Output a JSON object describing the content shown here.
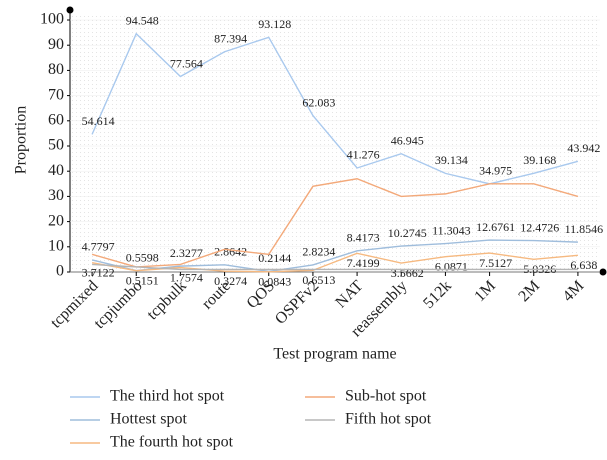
{
  "chart_data": {
    "type": "line",
    "x_label": "Test program name",
    "y_label": "Proportion",
    "categories": [
      "tcpmixed",
      "tcpjumbo",
      "tcpbulk",
      "route",
      "QOS",
      "OSPFv2",
      "NAT",
      "reassembly",
      "512k",
      "1M",
      "2M",
      "4M"
    ],
    "series": [
      {
        "name": "The third hot spot",
        "color": "#a9c9ee",
        "show_labels": true,
        "values": [
          54.614,
          94.548,
          77.564,
          87.394,
          93.128,
          62.083,
          41.276,
          46.945,
          39.134,
          34.975,
          39.168,
          43.942
        ]
      },
      {
        "name": "Hottest spot",
        "color": "#9fbddc",
        "show_labels": true,
        "values": [
          4.7797,
          0.5598,
          2.3277,
          2.8642,
          0.2144,
          2.8234,
          8.4173,
          10.2745,
          11.3043,
          12.6761,
          12.4726,
          11.8546
        ]
      },
      {
        "name": "The fourth hot spot",
        "color": "#f6b980",
        "show_labels": true,
        "values": [
          3.7122,
          0.5151,
          1.7574,
          0.3274,
          0.0843,
          0.6513,
          7.4199,
          3.5662,
          6.0871,
          7.5127,
          5.0326,
          6.638
        ]
      },
      {
        "name": "Sub-hot spot",
        "color": "#f3a97a",
        "show_labels": false,
        "values": [
          7,
          2,
          3,
          9,
          7,
          34,
          37,
          30,
          31,
          35,
          35,
          30
        ]
      },
      {
        "name": "Fifth hot spot",
        "color": "#b5b5b5",
        "show_labels": false,
        "values": [
          3,
          2,
          1,
          1,
          1,
          1,
          1,
          1,
          1,
          1,
          1,
          1
        ]
      }
    ],
    "ylim": [
      0,
      100
    ],
    "yticks": [
      0,
      10,
      20,
      30,
      40,
      50,
      60,
      70,
      80,
      90,
      100
    ],
    "grid": true
  }
}
